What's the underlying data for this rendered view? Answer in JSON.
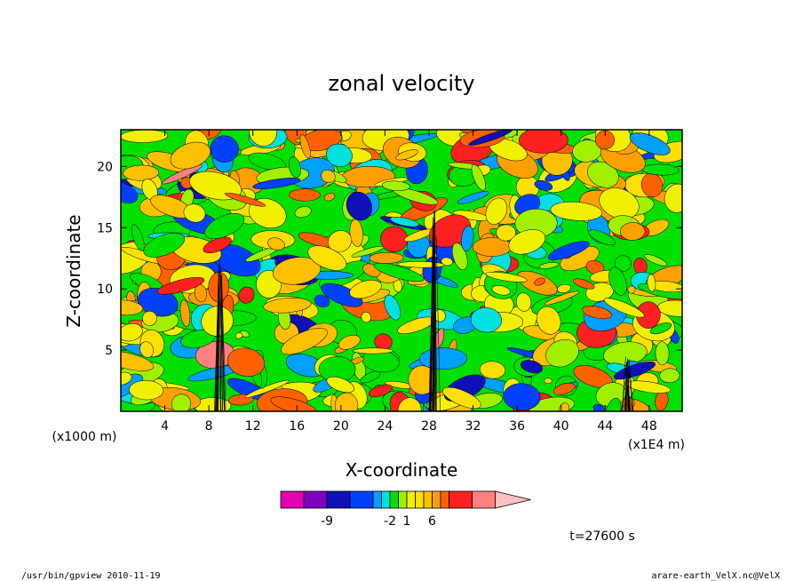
{
  "chart_data": {
    "type": "heatmap",
    "title": "zonal velocity",
    "xlabel": "X-coordinate",
    "ylabel": "Z-coordinate",
    "x_unit_label": "(x1E4 m)",
    "y_unit_label": "(x1000 m)",
    "xlim": [
      0,
      51
    ],
    "ylim": [
      0,
      23
    ],
    "x_ticks": [
      4,
      8,
      12,
      16,
      20,
      24,
      28,
      32,
      36,
      40,
      44,
      48
    ],
    "y_ticks": [
      5,
      10,
      15,
      20
    ],
    "colorbar": {
      "colors": [
        "#e000b0",
        "#8000c0",
        "#1010b8",
        "#0040ff",
        "#00a0ff",
        "#00e0e0",
        "#00e000",
        "#a0f000",
        "#f0f000",
        "#ffe000",
        "#ffc000",
        "#ffa000",
        "#ff6000",
        "#ff2020",
        "#ff8080",
        "#ffc0c0"
      ],
      "labels": [
        {
          "text": "-9",
          "index": 1
        },
        {
          "text": "-2",
          "index": 5
        },
        {
          "text": "1",
          "index": 7
        },
        {
          "text": "6",
          "index": 10
        }
      ]
    },
    "time_label": "t=27600 s"
  },
  "footer": {
    "left": "/usr/bin/gpview  2010-11-19",
    "right": "arare-earth_VelX.nc@VelX"
  }
}
